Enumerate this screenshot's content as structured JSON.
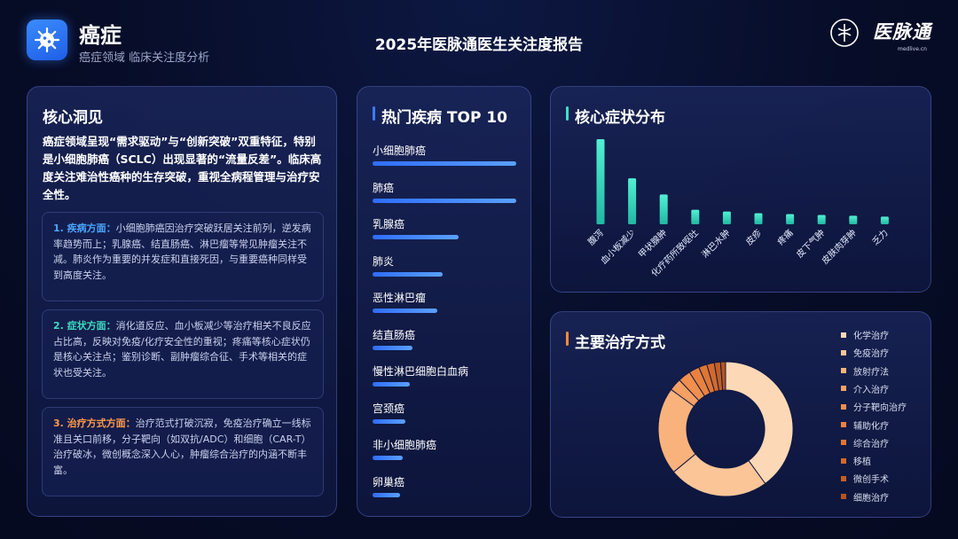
{
  "header": {
    "title": "癌症",
    "subtitle": "癌症领域 临床关注度分析",
    "report_title": "2025年医脉通医生关注度报告",
    "logo_text": "医脉通",
    "logo_url": "medlive.cn",
    "icon": "virus-icon"
  },
  "insights": {
    "title": "核心洞见",
    "summary": "癌症领域呈现“需求驱动”与“创新突破”双重特征，特别是小细胞肺癌（SCLC）出现显著的“流量反差”。临床高度关注难治性癌种的生存突破，重视全病程管理与治疗安全性。",
    "items": [
      {
        "label": "1. 疾病方面：",
        "text": "小细胞肺癌因治疗突破跃居关注前列，逆发病率趋势而上；乳腺癌、结直肠癌、淋巴瘤等常见肿瘤关注不减。肺炎作为重要的并发症和直接死因，与重要癌种同样受到高度关注。",
        "color": "#4aa6ff"
      },
      {
        "label": "2. 症状方面：",
        "text": "消化道反应、血小板减少等治疗相关不良反应占比高，反映对免疫/化疗安全性的重视；疼痛等核心症状仍是核心关注点；鉴别诊断、副肿瘤综合征、手术等相关的症状也受关注。",
        "color": "#3ddcc0"
      },
      {
        "label": "3. 治疗方式方面：",
        "text": "治疗范式打破沉寂，免疫治疗确立一线标准且关口前移，分子靶向（如双抗/ADC）和细胞（CAR-T）治疗破冰，微创概念深入人心，肿瘤综合治疗的内涵不断丰富。",
        "color": "#ff9a4a"
      }
    ]
  },
  "top10": {
    "title": "热门疾病 TOP 10",
    "accent": "#3a7bff",
    "items": [
      {
        "name": "小细胞肺癌",
        "value": 1.0
      },
      {
        "name": "肺癌",
        "value": 1.0
      },
      {
        "name": "乳腺癌",
        "value": 0.6
      },
      {
        "name": "肺炎",
        "value": 0.49
      },
      {
        "name": "恶性淋巴瘤",
        "value": 0.45
      },
      {
        "name": "结直肠癌",
        "value": 0.28
      },
      {
        "name": "慢性淋巴细胞白血病",
        "value": 0.26
      },
      {
        "name": "宫颈癌",
        "value": 0.23
      },
      {
        "name": "非小细胞肺癌",
        "value": 0.21
      },
      {
        "name": "卵巢癌",
        "value": 0.19
      }
    ]
  },
  "symptoms": {
    "title": "核心症状分布",
    "accent": "#3de0c4"
  },
  "treatments": {
    "title": "主要治疗方式",
    "accent": "#ff8a3a"
  },
  "chart_data": [
    {
      "type": "bar",
      "title": "核心症状分布",
      "categories": [
        "腹泻",
        "血小板减少",
        "甲状腺肿",
        "化疗药所致呕吐",
        "淋巴水肿",
        "皮疹",
        "疼痛",
        "皮下气肿",
        "皮肤肉芽肿",
        "乏力"
      ],
      "values": [
        100,
        54,
        35,
        17,
        15,
        13,
        12,
        11,
        10,
        9
      ],
      "color": "#3de0c4"
    },
    {
      "type": "pie",
      "title": "主要治疗方式",
      "categories": [
        "化学治疗",
        "免疫治疗",
        "放射疗法",
        "介入治疗",
        "分子靶向治疗",
        "辅助化疗",
        "综合治疗",
        "移植",
        "微创手术",
        "细胞治疗"
      ],
      "values": [
        40,
        24,
        21,
        3,
        3,
        2.5,
        2,
        1.8,
        1.5,
        1.2
      ],
      "colors": [
        "#fdd8b6",
        "#fcc597",
        "#f9b27c",
        "#f6a062",
        "#f08f4e",
        "#e9823f",
        "#de7634",
        "#d26a2b",
        "#c45f24",
        "#b6551e"
      ]
    }
  ]
}
